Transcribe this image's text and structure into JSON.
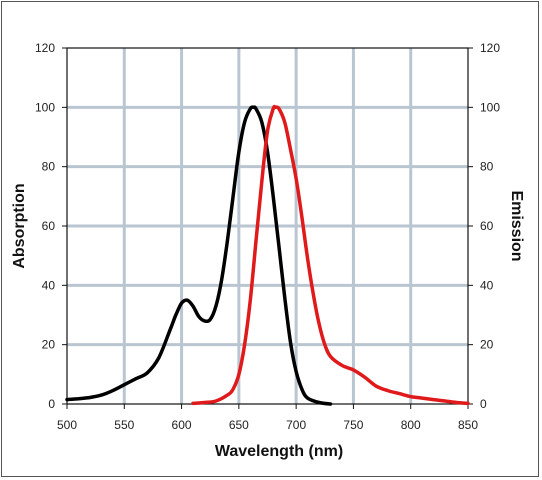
{
  "chart_data": {
    "type": "line",
    "xlabel": "Wavelength (nm)",
    "ylabel": "Absorption",
    "y2label": "Emission",
    "xlim": [
      500,
      850
    ],
    "ylim": [
      0,
      120
    ],
    "y2lim": [
      0,
      120
    ],
    "x_ticks": [
      500,
      550,
      600,
      650,
      700,
      750,
      800,
      850
    ],
    "y_ticks": [
      0,
      20,
      40,
      60,
      80,
      100,
      120
    ],
    "y2_ticks": [
      0,
      20,
      40,
      60,
      80,
      100,
      120
    ],
    "grid": true,
    "series": [
      {
        "color": "#000000",
        "axis": "left",
        "x": [
          500,
          510,
          520,
          530,
          540,
          550,
          560,
          570,
          580,
          590,
          595,
          600,
          605,
          610,
          615,
          620,
          625,
          630,
          635,
          640,
          645,
          650,
          655,
          660,
          663,
          665,
          670,
          675,
          680,
          685,
          690,
          695,
          700,
          705,
          710,
          720,
          730
        ],
        "y": [
          1.5,
          1.8,
          2.2,
          3,
          4.5,
          6.5,
          8.5,
          10.5,
          15.5,
          25,
          30,
          34,
          35,
          33,
          29.5,
          28,
          28.5,
          33,
          42,
          55,
          70,
          85,
          95,
          99.5,
          100,
          99.5,
          95,
          85,
          70,
          53,
          36,
          21,
          11,
          5,
          2,
          0.5,
          0
        ]
      },
      {
        "color": "#e0191b",
        "axis": "right",
        "x": [
          610,
          620,
          630,
          640,
          645,
          650,
          655,
          660,
          665,
          670,
          675,
          680,
          682,
          685,
          690,
          695,
          700,
          705,
          710,
          715,
          720,
          725,
          730,
          740,
          750,
          760,
          770,
          780,
          790,
          800,
          810,
          820,
          830,
          840,
          850
        ],
        "y": [
          0.2,
          0.5,
          1,
          3,
          5,
          10,
          20,
          35,
          55,
          75,
          92,
          99.5,
          100,
          99.5,
          95,
          86,
          76,
          63,
          49,
          37,
          27,
          20,
          16,
          13,
          11.5,
          9,
          6,
          4.5,
          3.5,
          2.5,
          2,
          1.5,
          1,
          0.5,
          0.2
        ]
      }
    ]
  }
}
